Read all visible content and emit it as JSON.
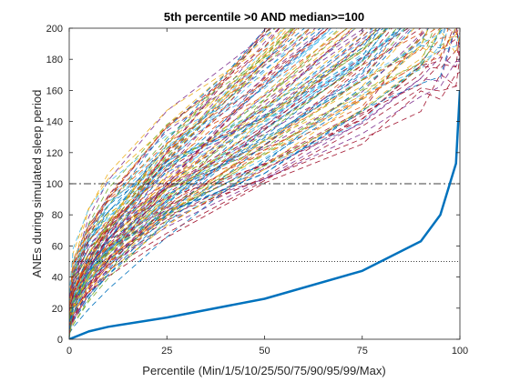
{
  "chart_data": {
    "type": "line",
    "title": "5th percentile >0 AND median>=100",
    "xlabel": "Percentile (Min/1/5/10/25/50/75/90/95/99/Max)",
    "ylabel": "ANEs during simulated sleep period",
    "xlim": [
      0,
      100
    ],
    "ylim": [
      0,
      200
    ],
    "xticks": [
      0,
      25,
      50,
      75,
      100
    ],
    "yticks": [
      0,
      20,
      40,
      60,
      80,
      100,
      120,
      140,
      160,
      180,
      200
    ],
    "x": [
      0,
      1,
      5,
      10,
      25,
      50,
      75,
      90,
      95,
      99,
      100
    ],
    "grid": false,
    "reference_lines": [
      {
        "y": 100,
        "style": "dash-dot",
        "color": "#000000"
      },
      {
        "y": 50,
        "style": "dotted",
        "color": "#000000"
      }
    ],
    "highlight_series": {
      "style": "solid",
      "color": "#0072BD",
      "values": [
        0,
        1,
        5,
        8,
        14,
        26,
        44,
        63,
        80,
        113,
        160
      ]
    },
    "background_series": {
      "style": "dashed",
      "count": 120,
      "palette": [
        "#0072BD",
        "#D95319",
        "#EDB120",
        "#7E2F8E",
        "#77AC30",
        "#4DBEEE",
        "#A2142F"
      ],
      "min_range": [
        0,
        30
      ],
      "median_range": [
        100,
        200
      ]
    }
  }
}
